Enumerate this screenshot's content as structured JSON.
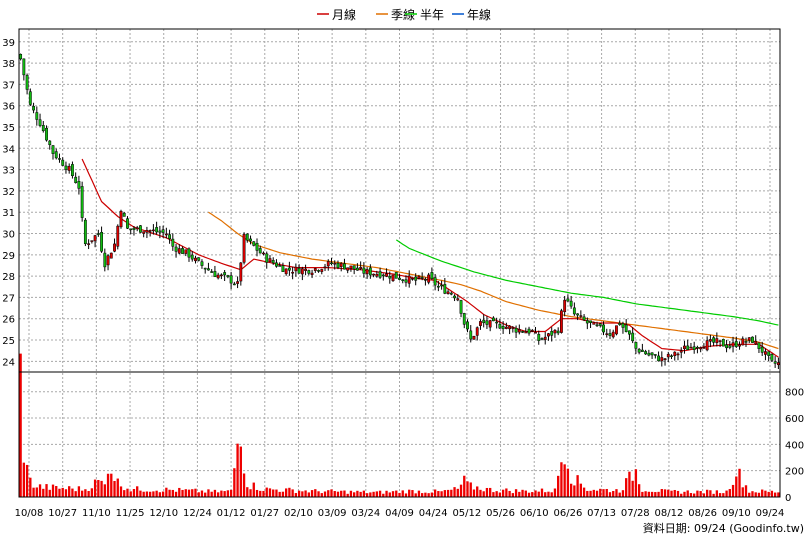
{
  "chart_data": {
    "type": "candlestick",
    "legend": [
      {
        "label": "月線",
        "color": "#cc0000"
      },
      {
        "label": "季線",
        "color": "#e07000"
      },
      {
        "label": "半年",
        "color": "#00cc00"
      },
      {
        "label": "年線",
        "color": "#0055cc"
      }
    ],
    "price_ticks": [
      24,
      25,
      26,
      27,
      28,
      29,
      30,
      31,
      32,
      33,
      34,
      35,
      36,
      37,
      38,
      39
    ],
    "volume_ticks": [
      0,
      200,
      400,
      600,
      800
    ],
    "x_labels": [
      "10/08",
      "10/27",
      "11/10",
      "11/25",
      "12/10",
      "12/24",
      "01/12",
      "01/27",
      "02/10",
      "03/09",
      "03/24",
      "04/09",
      "04/24",
      "05/12",
      "05/26",
      "06/10",
      "06/26",
      "07/13",
      "07/28",
      "08/12",
      "08/26",
      "09/10",
      "09/24"
    ],
    "ylim_price": [
      23.5,
      39.6
    ],
    "ylim_volume": [
      0,
      950
    ],
    "n_days": 235,
    "credit": "資料日期: 09/24  (Goodinfo.tw)",
    "close_anchors": [
      [
        0,
        38.2
      ],
      [
        3,
        36.0
      ],
      [
        6,
        35.2
      ],
      [
        10,
        33.8
      ],
      [
        15,
        33.0
      ],
      [
        18,
        32.2
      ],
      [
        19,
        30.6
      ],
      [
        20,
        29.5
      ],
      [
        24,
        30.0
      ],
      [
        26,
        28.6
      ],
      [
        29,
        29.5
      ],
      [
        31,
        31.2
      ],
      [
        33,
        30.2
      ],
      [
        38,
        30.2
      ],
      [
        45,
        30.0
      ],
      [
        47,
        29.4
      ],
      [
        52,
        29.0
      ],
      [
        55,
        28.6
      ],
      [
        60,
        28.1
      ],
      [
        65,
        27.8
      ],
      [
        67,
        27.6
      ],
      [
        69,
        29.8
      ],
      [
        72,
        29.4
      ],
      [
        76,
        28.8
      ],
      [
        82,
        28.3
      ],
      [
        90,
        28.3
      ],
      [
        96,
        28.6
      ],
      [
        102,
        28.4
      ],
      [
        106,
        28.2
      ],
      [
        112,
        28.1
      ],
      [
        118,
        27.9
      ],
      [
        122,
        27.8
      ],
      [
        126,
        27.9
      ],
      [
        129,
        27.5
      ],
      [
        133,
        27.2
      ],
      [
        135,
        27.0
      ],
      [
        137,
        25.8
      ],
      [
        139,
        25.0
      ],
      [
        142,
        25.8
      ],
      [
        148,
        25.7
      ],
      [
        153,
        25.5
      ],
      [
        158,
        25.4
      ],
      [
        160,
        25.0
      ],
      [
        163,
        25.2
      ],
      [
        166,
        25.5
      ],
      [
        168,
        27.0
      ],
      [
        171,
        26.2
      ],
      [
        175,
        25.8
      ],
      [
        178,
        25.6
      ],
      [
        182,
        25.3
      ],
      [
        185,
        25.8
      ],
      [
        188,
        25.2
      ],
      [
        190,
        24.6
      ],
      [
        194,
        24.3
      ],
      [
        198,
        24.1
      ],
      [
        202,
        24.3
      ],
      [
        205,
        24.6
      ],
      [
        210,
        24.8
      ],
      [
        215,
        24.9
      ],
      [
        219,
        24.7
      ],
      [
        222,
        24.9
      ],
      [
        226,
        25.0
      ],
      [
        229,
        24.5
      ],
      [
        232,
        23.9
      ],
      [
        234,
        23.9
      ]
    ],
    "volume_anchors": [
      [
        0,
        920
      ],
      [
        1,
        380
      ],
      [
        2,
        200
      ],
      [
        3,
        120
      ],
      [
        5,
        80
      ],
      [
        10,
        70
      ],
      [
        20,
        60
      ],
      [
        24,
        120
      ],
      [
        26,
        90
      ],
      [
        27,
        270
      ],
      [
        30,
        110
      ],
      [
        34,
        60
      ],
      [
        45,
        55
      ],
      [
        55,
        45
      ],
      [
        60,
        40
      ],
      [
        65,
        45
      ],
      [
        68,
        580
      ],
      [
        69,
        260
      ],
      [
        70,
        100
      ],
      [
        75,
        60
      ],
      [
        80,
        55
      ],
      [
        90,
        45
      ],
      [
        100,
        40
      ],
      [
        110,
        35
      ],
      [
        120,
        45
      ],
      [
        130,
        40
      ],
      [
        135,
        60
      ],
      [
        137,
        120
      ],
      [
        139,
        80
      ],
      [
        145,
        55
      ],
      [
        155,
        45
      ],
      [
        165,
        50
      ],
      [
        168,
        410
      ],
      [
        170,
        160
      ],
      [
        175,
        60
      ],
      [
        185,
        50
      ],
      [
        190,
        200
      ],
      [
        192,
        60
      ],
      [
        200,
        40
      ],
      [
        210,
        40
      ],
      [
        218,
        40
      ],
      [
        221,
        200
      ],
      [
        225,
        45
      ],
      [
        232,
        40
      ],
      [
        234,
        40
      ]
    ],
    "ma_month": {
      "start": 19,
      "anchors": [
        [
          19,
          33.5
        ],
        [
          25,
          31.5
        ],
        [
          30,
          30.8
        ],
        [
          35,
          30.3
        ],
        [
          45,
          29.8
        ],
        [
          55,
          29.0
        ],
        [
          62,
          28.6
        ],
        [
          68,
          28.3
        ],
        [
          72,
          28.8
        ],
        [
          78,
          28.6
        ],
        [
          85,
          28.4
        ],
        [
          95,
          28.4
        ],
        [
          105,
          28.3
        ],
        [
          115,
          28.1
        ],
        [
          122,
          27.9
        ],
        [
          128,
          27.8
        ],
        [
          133,
          27.3
        ],
        [
          138,
          26.8
        ],
        [
          143,
          26.2
        ],
        [
          150,
          25.7
        ],
        [
          156,
          25.4
        ],
        [
          162,
          25.4
        ],
        [
          167,
          26.0
        ],
        [
          172,
          26.0
        ],
        [
          178,
          25.8
        ],
        [
          184,
          25.8
        ],
        [
          188,
          25.7
        ],
        [
          192,
          25.2
        ],
        [
          198,
          24.6
        ],
        [
          205,
          24.5
        ],
        [
          212,
          24.7
        ],
        [
          220,
          24.8
        ],
        [
          228,
          24.8
        ],
        [
          234,
          24.2
        ]
      ]
    },
    "ma_quarter": {
      "start": 58,
      "anchors": [
        [
          58,
          31.0
        ],
        [
          62,
          30.6
        ],
        [
          67,
          30.0
        ],
        [
          72,
          29.5
        ],
        [
          80,
          29.1
        ],
        [
          90,
          28.8
        ],
        [
          100,
          28.6
        ],
        [
          110,
          28.4
        ],
        [
          120,
          28.1
        ],
        [
          130,
          27.8
        ],
        [
          136,
          27.6
        ],
        [
          142,
          27.3
        ],
        [
          150,
          26.8
        ],
        [
          160,
          26.4
        ],
        [
          170,
          26.1
        ],
        [
          180,
          25.9
        ],
        [
          190,
          25.7
        ],
        [
          200,
          25.5
        ],
        [
          210,
          25.3
        ],
        [
          220,
          25.1
        ],
        [
          228,
          24.9
        ],
        [
          234,
          24.6
        ]
      ]
    },
    "ma_half": {
      "start": 116,
      "anchors": [
        [
          116,
          29.7
        ],
        [
          120,
          29.3
        ],
        [
          130,
          28.7
        ],
        [
          140,
          28.2
        ],
        [
          150,
          27.8
        ],
        [
          160,
          27.5
        ],
        [
          170,
          27.2
        ],
        [
          180,
          27.0
        ],
        [
          190,
          26.7
        ],
        [
          200,
          26.5
        ],
        [
          210,
          26.3
        ],
        [
          220,
          26.1
        ],
        [
          228,
          25.9
        ],
        [
          234,
          25.7
        ]
      ]
    }
  }
}
